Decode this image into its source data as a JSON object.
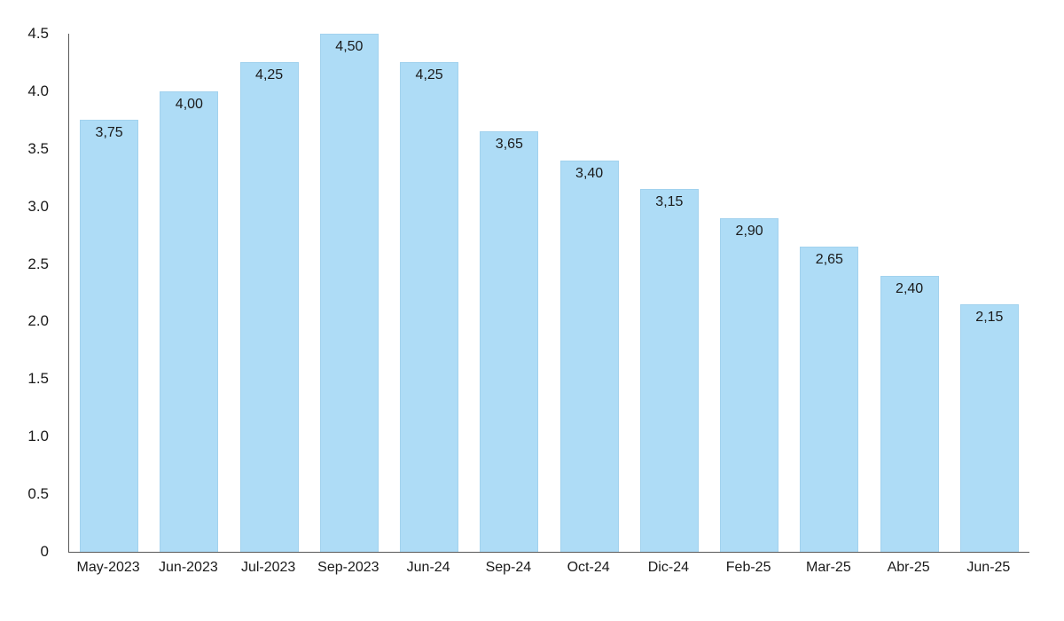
{
  "chart_data": {
    "type": "bar",
    "title": "",
    "xlabel": "",
    "ylabel": "",
    "categories": [
      "May-2023",
      "Jun-2023",
      "Jul-2023",
      "Sep-2023",
      "Jun-24",
      "Sep-24",
      "Oct-24",
      "Dic-24",
      "Feb-25",
      "Mar-25",
      "Abr-25",
      "Jun-25"
    ],
    "values": [
      3.75,
      4.0,
      4.25,
      4.5,
      4.25,
      3.65,
      3.4,
      3.15,
      2.9,
      2.65,
      2.4,
      2.15
    ],
    "data_labels": [
      "3,75",
      "4,00",
      "4,25",
      "4,50",
      "4,25",
      "3,65",
      "3,40",
      "3,15",
      "2,90",
      "2,65",
      "2,40",
      "2,15"
    ],
    "ylim": [
      0,
      4.5
    ],
    "y_ticks": [
      {
        "value": 4.5,
        "label": "4.5"
      },
      {
        "value": 4.0,
        "label": "4.0"
      },
      {
        "value": 3.5,
        "label": "3.5"
      },
      {
        "value": 3.0,
        "label": "3.0"
      },
      {
        "value": 2.5,
        "label": "2.5"
      },
      {
        "value": 2.0,
        "label": "2.0"
      },
      {
        "value": 1.5,
        "label": "1.5"
      },
      {
        "value": 1.0,
        "label": "1.0"
      },
      {
        "value": 0.5,
        "label": "0.5"
      },
      {
        "value": 0,
        "label": "0"
      }
    ],
    "grid": false,
    "legend": false,
    "data_labels_position": "inside-top",
    "colors": {
      "bar_fill": "#aedcf6",
      "bar_border": "#a2d2ee",
      "axis_line": "#595959",
      "label_text": "#1a1a1a",
      "background": "#ffffff"
    }
  }
}
